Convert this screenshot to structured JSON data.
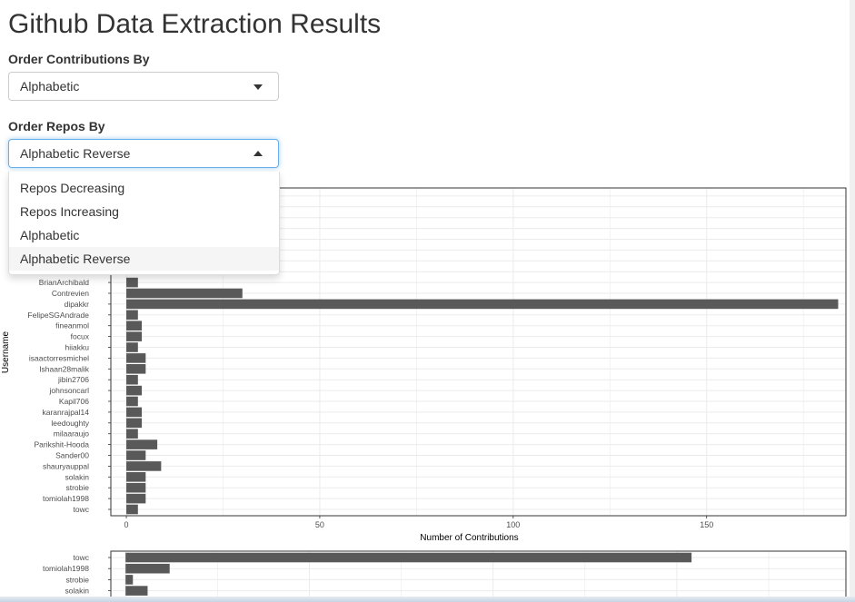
{
  "page": {
    "title": "Github Data Extraction Results"
  },
  "controls": {
    "contrib_label": "Order Contributions By",
    "contrib_value": "Alphabetic",
    "repos_label": "Order Repos By",
    "repos_value": "Alphabetic Reverse",
    "repos_options": [
      "Repos Decreasing",
      "Repos Increasing",
      "Alphabetic",
      "Alphabetic Reverse"
    ],
    "repos_active_index": 3
  },
  "chart_data": [
    {
      "type": "bar",
      "orientation": "horizontal",
      "xlabel": "Number of Contributions",
      "ylabel": "Username",
      "xlim": [
        -4,
        186
      ],
      "x_ticks": [
        0,
        50,
        100,
        150
      ],
      "grid": true,
      "categories": [
        "BrianArchibald",
        "Contrevien",
        "dipakkr",
        "FelipeSGAndrade",
        "fineanmol",
        "focux",
        "hiiakku",
        "isaactorresmichel",
        "Ishaan28malik",
        "jibin2706",
        "johnsoncarl",
        "Kapil706",
        "karanrajpal14",
        "leedoughty",
        "milaaraujo",
        "Parikshit-Hooda",
        "Sander00",
        "shauryauppal",
        "solakin",
        "strobie",
        "tomiolah1998",
        "towc"
      ],
      "values": [
        3,
        30,
        184,
        3,
        4,
        4,
        3,
        5,
        5,
        3,
        4,
        3,
        4,
        4,
        3,
        8,
        5,
        9,
        5,
        5,
        5,
        3
      ]
    },
    {
      "type": "bar",
      "orientation": "horizontal",
      "xlim": [
        -4,
        196
      ],
      "grid": true,
      "categories": [
        "towc",
        "tomiolah1998",
        "strobie",
        "solakin"
      ],
      "values": [
        154,
        12,
        2,
        6
      ]
    }
  ]
}
